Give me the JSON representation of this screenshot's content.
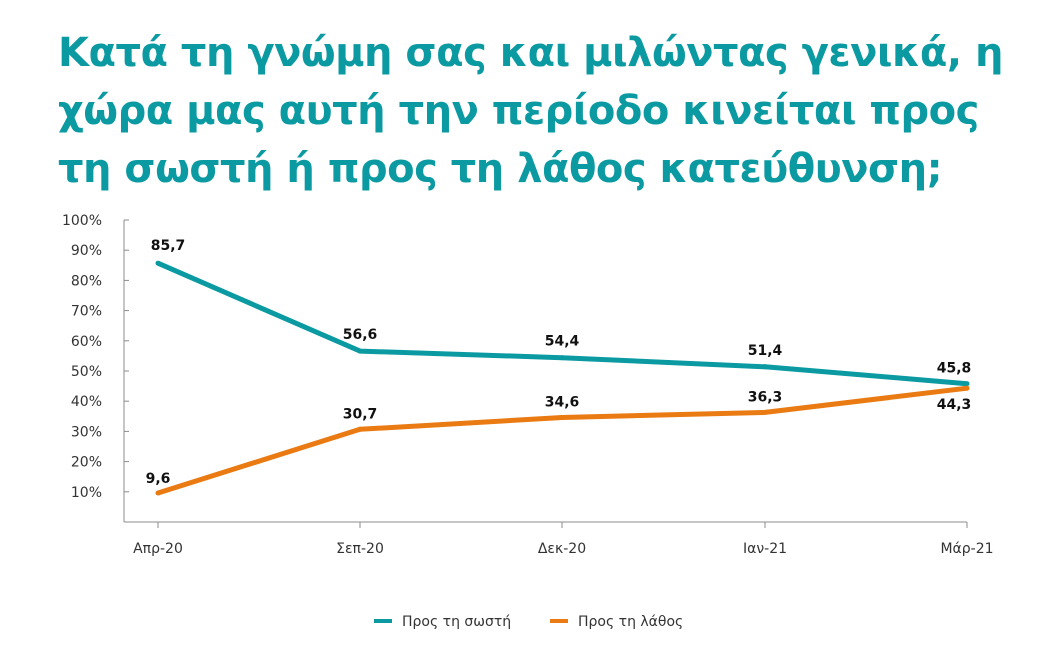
{
  "title": "Κατά τη γνώμη σας και μιλώντας γενικά, η χώρα μας αυτή την περίοδο κινείται προς τη σωστή ή προς τη λάθος κατεύθυνση;",
  "chart_data": {
    "type": "line",
    "title": "Κατά τη γνώμη σας και μιλώντας γενικά, η χώρα μας αυτή την περίοδο κινείται προς τη σωστή ή προς τη λάθος κατεύθυνση;",
    "categories": [
      "Απρ-20",
      "Σεπ-20",
      "Δεκ-20",
      "Ιαν-21",
      "Μάρ-21"
    ],
    "series": [
      {
        "name": "Προς τη σωστή",
        "color": "#0b9aa2",
        "values": [
          85.7,
          56.6,
          54.4,
          51.4,
          45.8
        ],
        "labels": [
          "85,7",
          "56,6",
          "54,4",
          "51,4",
          "45,8"
        ]
      },
      {
        "name": "Προς τη λάθος",
        "color": "#ea7a12",
        "values": [
          9.6,
          30.7,
          34.6,
          36.3,
          44.3
        ],
        "labels": [
          "9,6",
          "30,7",
          "34,6",
          "36,3",
          "44,3"
        ]
      }
    ],
    "yticks": [
      "10%",
      "20%",
      "30%",
      "40%",
      "50%",
      "60%",
      "70%",
      "80%",
      "90%",
      "100%"
    ],
    "ylim": [
      0,
      100
    ],
    "grid": false,
    "legend_position": "bottom"
  }
}
